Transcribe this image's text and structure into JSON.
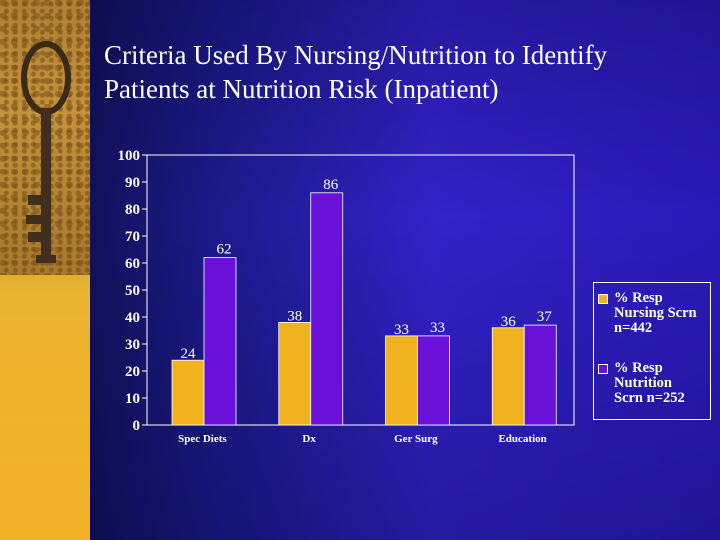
{
  "slide": {
    "title_line1": "Criteria Used By Nursing/Nutrition to Identify",
    "title_line2": "Patients at Nutrition Risk (Inpatient)"
  },
  "colors": {
    "series1": "#f0b21e",
    "series2": "#6a10d8",
    "axis": "#ffffff",
    "text": "#ffffff"
  },
  "chart_data": {
    "type": "bar",
    "categories": [
      "Spec Diets",
      "Dx",
      "Ger Surg",
      "Education"
    ],
    "series": [
      {
        "name": "% Resp Nursing Scrn n=442",
        "values": [
          24,
          38,
          33,
          36
        ]
      },
      {
        "name": "% Resp Nutrition Scrn n=252",
        "values": [
          62,
          86,
          33,
          37
        ]
      }
    ],
    "ylim": [
      0,
      100
    ],
    "yticks": [
      "0",
      "10",
      "20",
      "30",
      "40",
      "50",
      "60",
      "70",
      "80",
      "90",
      "100"
    ],
    "data_labels": [
      [
        "24",
        "38",
        "33",
        "36"
      ],
      [
        "62",
        "86",
        "33",
        "37"
      ]
    ],
    "legend_position": "right",
    "xlabel": "",
    "ylabel": ""
  },
  "legend": {
    "item1_line1": "% Resp",
    "item1_line2": "Nursing Scrn",
    "item1_line3": "n=442",
    "item2_line1": "% Resp",
    "item2_line2": "Nutrition",
    "item2_line3": "Scrn n=252"
  }
}
